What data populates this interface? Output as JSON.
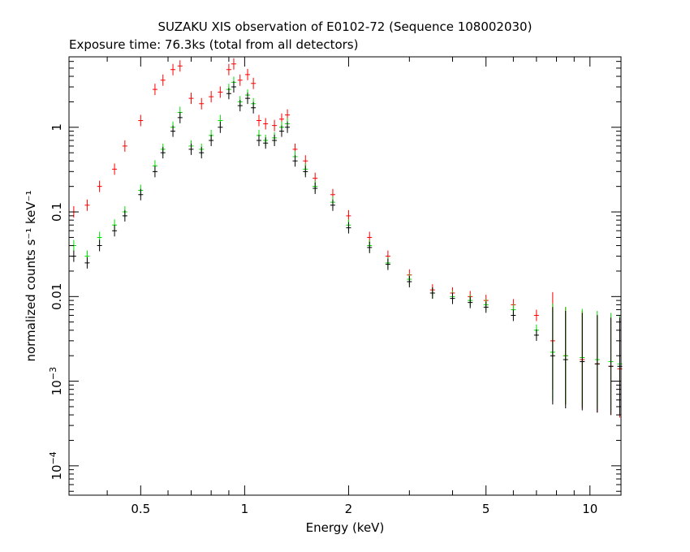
{
  "chart_data": {
    "type": "scatter",
    "title": "SUZAKU XIS observation of E0102-72 (Sequence 108002030)",
    "subtitle": "Exposure time: 76.3ks (total from all detectors)",
    "xlabel": "Energy (keV)",
    "ylabel": "normalized counts s⁻¹ keV⁻¹",
    "xscale": "log",
    "yscale": "log",
    "xlim": [
      0.31,
      12.3
    ],
    "ylim": [
      4.5e-05,
      6.8
    ],
    "x_ticks": [
      {
        "value": 0.5,
        "label": "0.5"
      },
      {
        "value": 1,
        "label": "1"
      },
      {
        "value": 2,
        "label": "2"
      },
      {
        "value": 5,
        "label": "5"
      },
      {
        "value": 10,
        "label": "10"
      }
    ],
    "y_ticks": [
      {
        "value": 1,
        "label": "1"
      },
      {
        "value": 0.1,
        "label": "0.1"
      },
      {
        "value": 0.01,
        "label": "0.01"
      },
      {
        "value": 0.001,
        "base": "10",
        "exp": "−3"
      },
      {
        "value": 0.0001,
        "base": "10",
        "exp": "−4"
      }
    ],
    "series": [
      {
        "color": "#ff0000",
        "x": [
          0.32,
          0.35,
          0.38,
          0.42,
          0.45,
          0.5,
          0.55,
          0.58,
          0.62,
          0.65,
          0.7,
          0.75,
          0.8,
          0.85,
          0.9,
          0.93,
          0.97,
          1.02,
          1.06,
          1.1,
          1.15,
          1.22,
          1.28,
          1.33,
          1.4,
          1.5,
          1.6,
          1.8,
          2.0,
          2.3,
          2.6,
          3.0,
          3.5,
          4.0,
          4.5,
          5.0,
          6.0,
          7.0,
          7.8,
          8.5,
          9.5,
          10.5,
          11.5,
          12.2
        ],
        "y": [
          0.1,
          0.12,
          0.2,
          0.32,
          0.6,
          1.2,
          2.8,
          3.6,
          4.8,
          5.3,
          2.2,
          1.9,
          2.3,
          2.6,
          4.8,
          5.6,
          3.6,
          4.2,
          3.3,
          1.2,
          1.1,
          1.05,
          1.25,
          1.4,
          0.55,
          0.4,
          0.25,
          0.16,
          0.09,
          0.05,
          0.03,
          0.018,
          0.012,
          0.011,
          0.01,
          0.009,
          0.008,
          0.006,
          0.003,
          0.002,
          0.0018,
          0.0016,
          0.0015,
          0.0014
        ]
      },
      {
        "color": "#00e000",
        "x": [
          0.32,
          0.35,
          0.38,
          0.42,
          0.45,
          0.5,
          0.55,
          0.58,
          0.62,
          0.65,
          0.7,
          0.75,
          0.8,
          0.85,
          0.9,
          0.93,
          0.97,
          1.02,
          1.06,
          1.1,
          1.15,
          1.22,
          1.28,
          1.33,
          1.4,
          1.5,
          1.6,
          1.8,
          2.0,
          2.3,
          2.6,
          3.0,
          3.5,
          4.0,
          4.5,
          5.0,
          6.0,
          7.0,
          7.8,
          8.5,
          9.5,
          10.5,
          11.5,
          12.2
        ],
        "y": [
          0.04,
          0.03,
          0.05,
          0.07,
          0.1,
          0.18,
          0.35,
          0.55,
          1.0,
          1.5,
          0.6,
          0.55,
          0.8,
          1.2,
          2.8,
          3.4,
          2.0,
          2.4,
          1.9,
          0.8,
          0.7,
          0.75,
          1.0,
          1.1,
          0.45,
          0.32,
          0.2,
          0.13,
          0.07,
          0.04,
          0.025,
          0.016,
          0.011,
          0.01,
          0.009,
          0.008,
          0.007,
          0.004,
          0.0022,
          0.002,
          0.0019,
          0.0018,
          0.0017,
          0.0016
        ]
      },
      {
        "color": "#000000",
        "x": [
          0.32,
          0.35,
          0.38,
          0.42,
          0.45,
          0.5,
          0.55,
          0.58,
          0.62,
          0.65,
          0.7,
          0.75,
          0.8,
          0.85,
          0.9,
          0.93,
          0.97,
          1.02,
          1.06,
          1.1,
          1.15,
          1.22,
          1.28,
          1.33,
          1.4,
          1.5,
          1.6,
          1.8,
          2.0,
          2.3,
          2.6,
          3.0,
          3.5,
          4.0,
          4.5,
          5.0,
          6.0,
          7.0,
          7.8,
          8.5,
          9.5,
          10.5,
          11.5,
          12.2
        ],
        "y": [
          0.03,
          0.025,
          0.04,
          0.06,
          0.09,
          0.16,
          0.3,
          0.5,
          0.9,
          1.3,
          0.55,
          0.5,
          0.7,
          1.0,
          2.5,
          3.0,
          1.8,
          2.2,
          1.7,
          0.7,
          0.65,
          0.7,
          0.9,
          1.0,
          0.4,
          0.3,
          0.19,
          0.12,
          0.065,
          0.038,
          0.024,
          0.015,
          0.011,
          0.0095,
          0.0085,
          0.0075,
          0.006,
          0.0035,
          0.002,
          0.0018,
          0.0017,
          0.0016,
          0.0015,
          0.0015
        ]
      }
    ]
  }
}
